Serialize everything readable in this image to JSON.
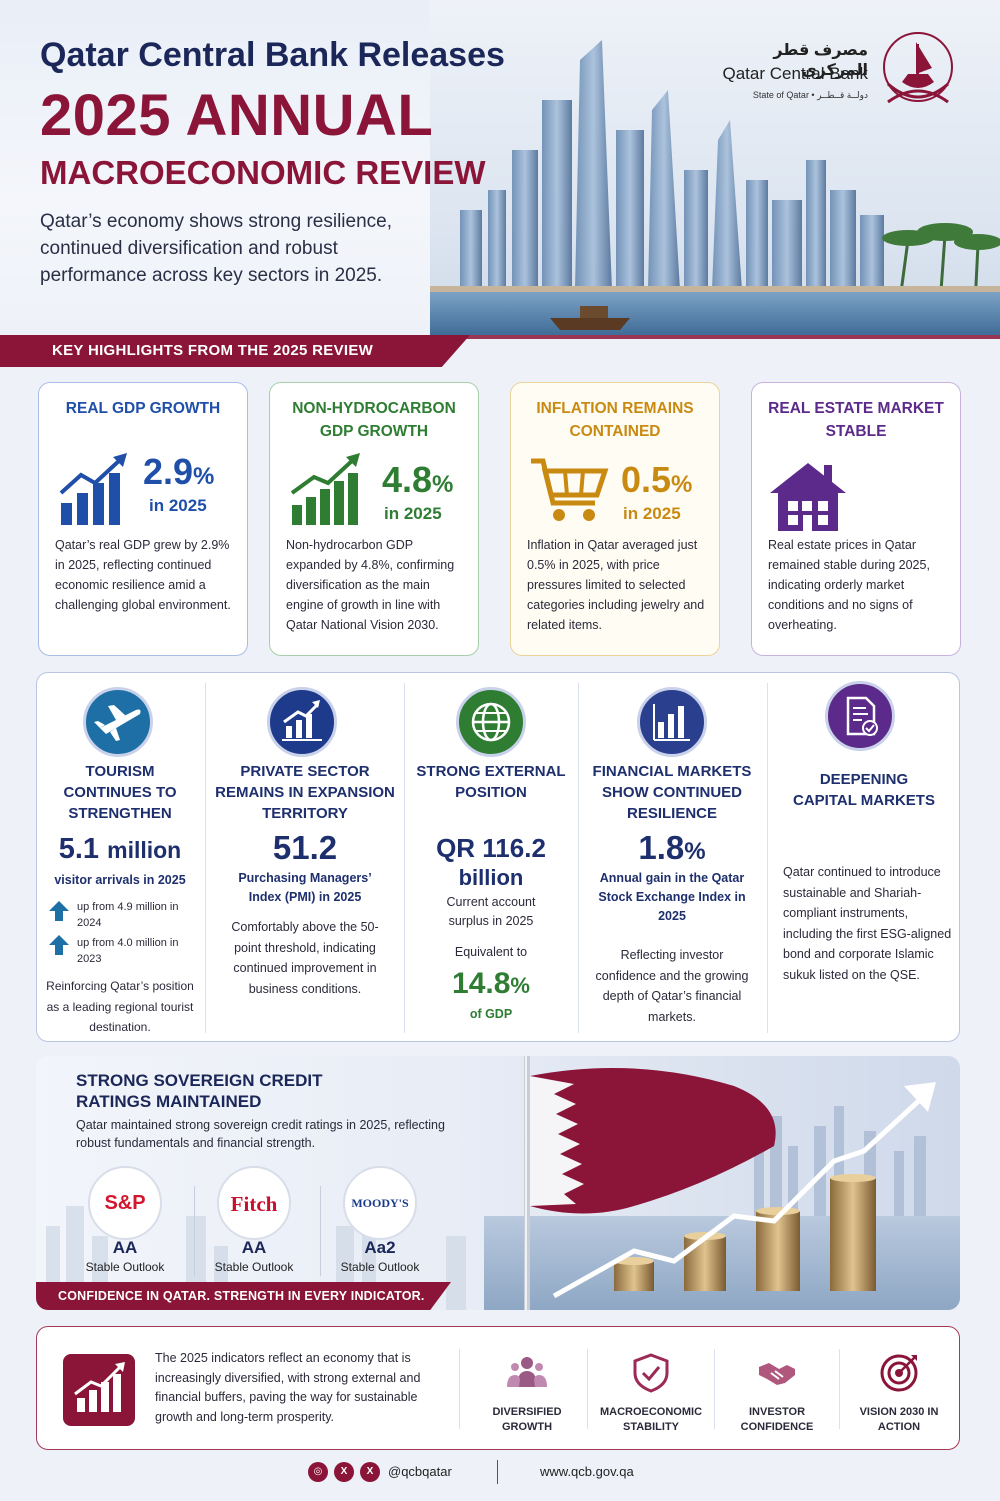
{
  "header": {
    "title_line1": "Qatar Central Bank Releases",
    "title_line2": "2025 ANNUAL",
    "title_line3": "MACROECONOMIC REVIEW",
    "subtitle": "Qatar’s economy shows strong resilience, continued diversification and robust performance across key sectors in 2025.",
    "logo_arabic": "مصرف قطر المركزي",
    "logo_english": "Qatar Central Bank",
    "logo_sub": "State of Qatar • دولــة قــطــر"
  },
  "banner": {
    "text": "KEY HIGHLIGHTS FROM THE 2025 REVIEW"
  },
  "highlights": [
    {
      "title": "REAL GDP GROWTH",
      "value": "2.9",
      "unit": "%",
      "year": "in 2025",
      "description": "Qatar’s real GDP grew by 2.9% in 2025, reflecting continued economic resilience amid a challenging global environment.",
      "color": "#1f4fa8",
      "border": "#a9bde6",
      "icon": "bar-chart-growth-icon"
    },
    {
      "title": "NON-HYDROCARBON GDP GROWTH",
      "value": "4.8",
      "unit": "%",
      "year": "in 2025",
      "description": "Non-hydrocarbon GDP expanded by 4.8%, confirming diversification as the main engine of growth in line with Qatar National Vision 2030.",
      "color": "#2e7d32",
      "border": "#a8cfa9",
      "icon": "bar-chart-growth-icon"
    },
    {
      "title": "INFLATION REMAINS CONTAINED",
      "value": "0.5",
      "unit": "%",
      "year": "in 2025",
      "description": "Inflation in Qatar averaged just 0.5% in 2025, with price pressures limited to selected categories including jewelry and related items.",
      "color": "#c98a12",
      "border": "#ecd39a",
      "icon": "shopping-cart-icon"
    },
    {
      "title": "REAL ESTATE MARKET STABLE",
      "value": "",
      "unit": "",
      "year": "",
      "description": "Real estate prices in Qatar remained stable during 2025, indicating orderly market conditions and no signs of overheating.",
      "color": "#5b2a8a",
      "border": "#c7b2dd",
      "icon": "house-icon"
    }
  ],
  "indicators": {
    "tourism": {
      "title": "TOURISM CONTINUES TO STRENGTHEN",
      "value": "5.1",
      "unit": "million",
      "label": "visitor arrivals in 2025",
      "up1": "up from 4.9 million in 2024",
      "up2": "up from 4.0 million in 2023",
      "description": "Reinforcing Qatar’s position as a leading regional tourist destination.",
      "icon": "airplane-icon"
    },
    "pmi": {
      "title": "PRIVATE SECTOR REMAINS IN EXPANSION TERRITORY",
      "value": "51.2",
      "label": "Purchasing Managers’ Index (PMI) in 2025",
      "description": "Comfortably above the 50-point threshold, indicating continued improvement in business conditions.",
      "icon": "chart-up-icon"
    },
    "external": {
      "title": "STRONG EXTERNAL POSITION",
      "value": "QR 116.2",
      "unit": "billion",
      "label": "Current account surplus in 2025",
      "equiv": "Equivalent to",
      "value2": "14.8",
      "unit2": "%",
      "label2": "of GDP",
      "icon": "globe-icon"
    },
    "markets": {
      "title": "FINANCIAL MARKETS SHOW CONTINUED RESILIENCE",
      "value": "1.8",
      "unit": "%",
      "label": "Annual gain in the Qatar Stock Exchange Index in 2025",
      "description": "Reflecting investor confidence and the growing depth of Qatar’s financial markets.",
      "icon": "bar-chart-icon"
    },
    "capital": {
      "title": "DEEPENING CAPITAL MARKETS",
      "description": "Qatar continued to introduce sustainable and Shariah-compliant instruments, including the first ESG-aligned bond and corporate Islamic sukuk listed on the QSE.",
      "icon": "document-check-icon"
    }
  },
  "credit": {
    "title": "STRONG SOVEREIGN CREDIT RATINGS MAINTAINED",
    "description": "Qatar maintained strong sovereign credit ratings in 2025, reflecting robust fundamentals and financial strength.",
    "agencies": [
      {
        "name": "S&P",
        "rating": "AA",
        "outlook": "Stable Outlook",
        "color": "#d3172e"
      },
      {
        "name": "Fitch",
        "rating": "AA",
        "outlook": "Stable Outlook",
        "color": "#c8102e"
      },
      {
        "name": "MOODY'S",
        "rating": "Aa2",
        "outlook": "Stable Outlook",
        "color": "#1a3b8c"
      }
    ],
    "tagline": "CONFIDENCE IN QATAR. STRENGTH IN EVERY INDICATOR."
  },
  "conclusion": {
    "text": "The 2025 indicators reflect an economy that is increasingly diversified, with strong external and financial buffers, paving the way for sustainable growth and long-term prosperity.",
    "pillars": [
      {
        "label": "DIVERSIFIED GROWTH",
        "icon": "people-group-icon"
      },
      {
        "label": "MACROECONOMIC STABILITY",
        "icon": "shield-check-icon"
      },
      {
        "label": "INVESTOR CONFIDENCE",
        "icon": "handshake-icon"
      },
      {
        "label": "VISION 2030 IN ACTION",
        "icon": "target-icon"
      }
    ]
  },
  "footer": {
    "handle": "@qcbqatar",
    "website": "www.qcb.gov.qa",
    "socials": [
      "instagram-icon",
      "x-icon",
      "x-icon"
    ]
  }
}
